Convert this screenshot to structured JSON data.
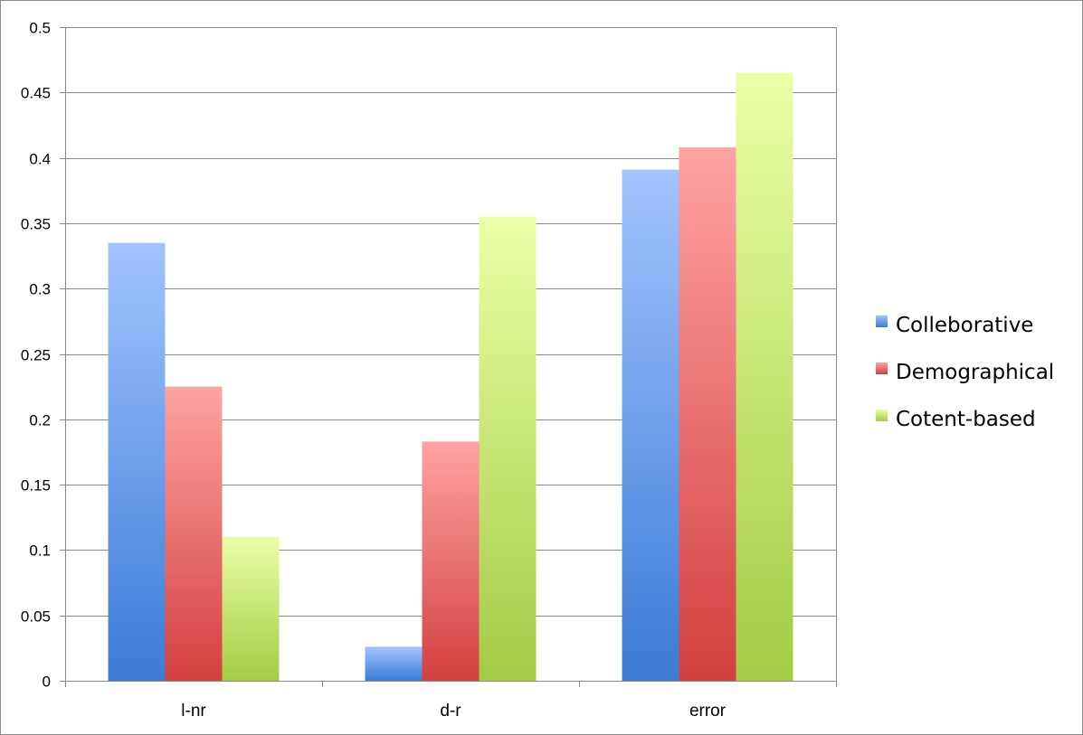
{
  "chart_data": {
    "type": "bar",
    "title": "",
    "xlabel": "",
    "ylabel": "",
    "categories": [
      "l-nr",
      "d-r",
      "error"
    ],
    "series": [
      {
        "name": "Colleborative",
        "values": [
          0.335,
          0.026,
          0.391
        ],
        "color": "#5a8fdc",
        "color_light": "#a2c4ff",
        "color_dark": "#3b7bd6"
      },
      {
        "name": "Demographical",
        "values": [
          0.225,
          0.183,
          0.408
        ],
        "color": "#e25a5a",
        "color_light": "#ffa3a3",
        "color_dark": "#d33f3f"
      },
      {
        "name": "Cotent-based",
        "values": [
          0.11,
          0.355,
          0.465
        ],
        "color": "#b9e05a",
        "color_light": "#ebffa6",
        "color_dark": "#a3cc45"
      }
    ],
    "ylim": [
      0,
      0.5
    ],
    "y_ticks": [
      "0",
      "0.05",
      "0.1",
      "0.15",
      "0.2",
      "0.25",
      "0.3",
      "0.35",
      "0.4",
      "0.45",
      "0.5"
    ],
    "grid": true,
    "legend_position": "right"
  }
}
